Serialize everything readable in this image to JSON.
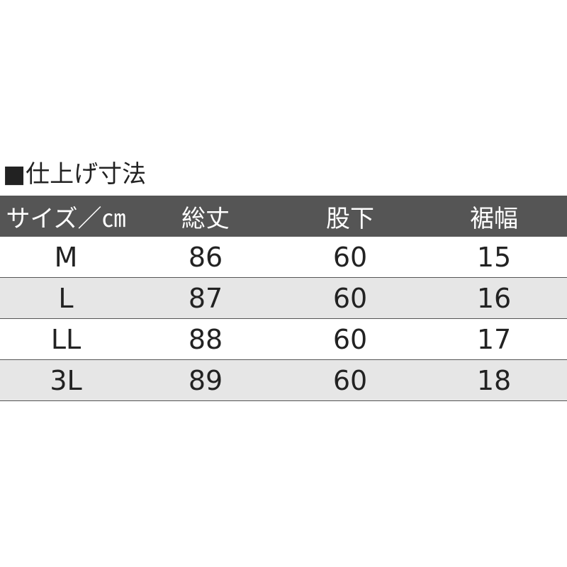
{
  "title": "■仕上げ寸法",
  "table": {
    "header": [
      "サイズ／㎝",
      "総丈",
      "股下",
      "裾幅"
    ],
    "rows": [
      [
        "M",
        86,
        60,
        15
      ],
      [
        "L",
        87,
        60,
        16
      ],
      [
        "LL",
        88,
        60,
        17
      ],
      [
        "3L",
        89,
        60,
        18
      ]
    ]
  }
}
